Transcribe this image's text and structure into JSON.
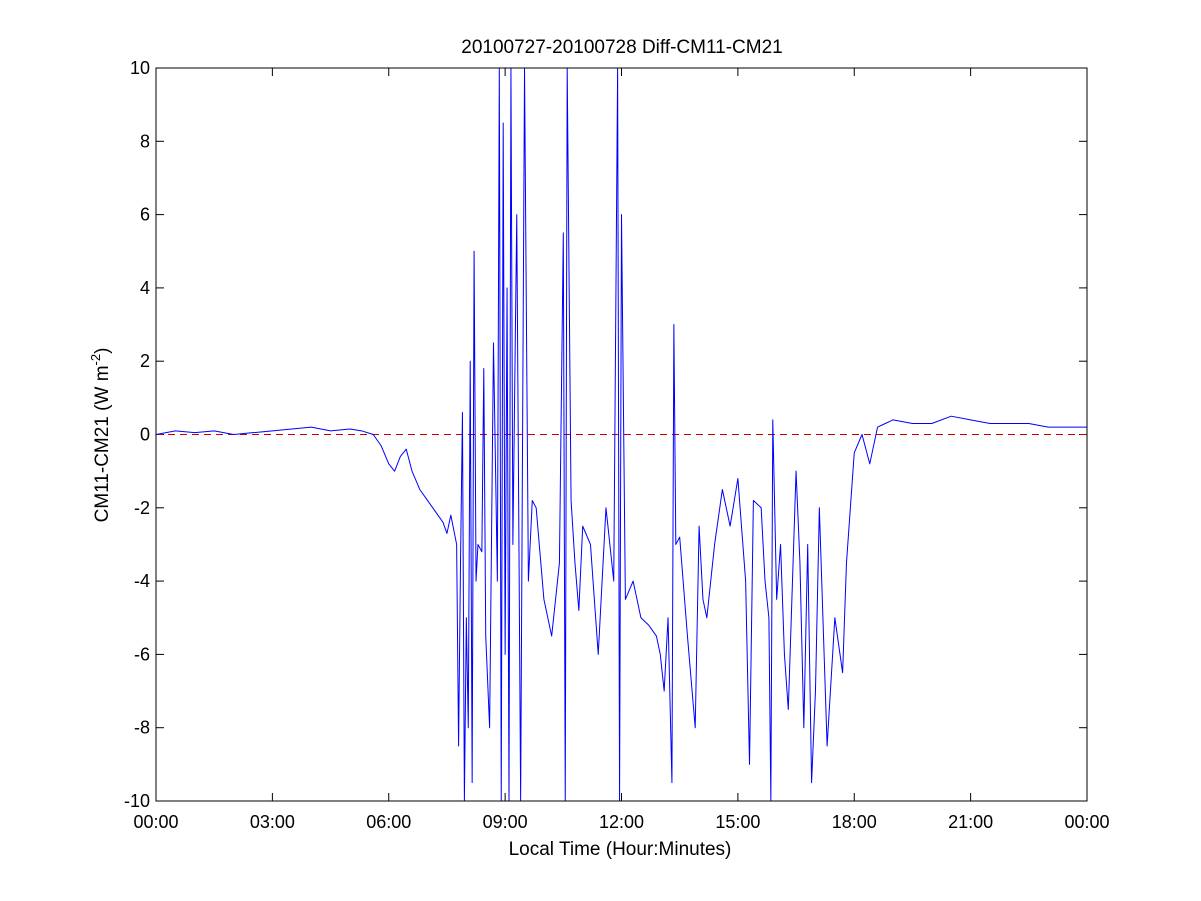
{
  "chart_data": {
    "type": "line",
    "title": "20100727-20100728 Diff-CM11-CM21",
    "xlabel": "Local Time (Hour:Minutes)",
    "ylabel": "CM11-CM21 (W m-2)",
    "ylabel_parts": {
      "main": "CM11-CM21 (W m",
      "sup": "-2",
      "close": ")"
    },
    "xlim": [
      0,
      24
    ],
    "ylim": [
      -10,
      10
    ],
    "x_unit": "hours (local time)",
    "x_ticks": [
      0,
      3,
      6,
      9,
      12,
      15,
      18,
      21,
      24
    ],
    "x_tick_labels": [
      "00:00",
      "03:00",
      "06:00",
      "09:00",
      "12:00",
      "15:00",
      "18:00",
      "21:00",
      "00:00"
    ],
    "y_ticks": [
      -10,
      -8,
      -6,
      -4,
      -2,
      0,
      2,
      4,
      6,
      8,
      10
    ],
    "y_tick_labels": [
      "-10",
      "-8",
      "-6",
      "-4",
      "-2",
      "0",
      "2",
      "4",
      "6",
      "8",
      "10"
    ],
    "grid": false,
    "reference_line": {
      "y": 0,
      "color": "#cc0000",
      "style": "dashed"
    },
    "series": [
      {
        "color": "#0000ff",
        "x": [
          0.0,
          0.5,
          1.0,
          1.5,
          2.0,
          2.5,
          3.0,
          3.5,
          4.0,
          4.5,
          5.0,
          5.3,
          5.6,
          5.8,
          6.0,
          6.15,
          6.3,
          6.45,
          6.6,
          6.8,
          7.0,
          7.2,
          7.4,
          7.5,
          7.6,
          7.75,
          7.8,
          7.85,
          7.9,
          7.95,
          8.0,
          8.05,
          8.1,
          8.15,
          8.2,
          8.25,
          8.3,
          8.4,
          8.45,
          8.5,
          8.6,
          8.7,
          8.8,
          8.85,
          8.9,
          8.95,
          9.0,
          9.05,
          9.1,
          9.15,
          9.2,
          9.3,
          9.4,
          9.5,
          9.6,
          9.7,
          9.8,
          10.0,
          10.2,
          10.4,
          10.5,
          10.55,
          10.6,
          10.7,
          10.8,
          10.9,
          11.0,
          11.2,
          11.4,
          11.6,
          11.8,
          11.9,
          11.95,
          12.0,
          12.1,
          12.3,
          12.5,
          12.7,
          12.9,
          13.0,
          13.1,
          13.2,
          13.3,
          13.35,
          13.4,
          13.5,
          13.7,
          13.9,
          14.0,
          14.1,
          14.2,
          14.4,
          14.6,
          14.8,
          15.0,
          15.2,
          15.3,
          15.4,
          15.6,
          15.7,
          15.8,
          15.85,
          15.9,
          16.0,
          16.1,
          16.2,
          16.3,
          16.5,
          16.6,
          16.7,
          16.8,
          16.9,
          17.0,
          17.1,
          17.3,
          17.5,
          17.7,
          17.8,
          17.9,
          18.0,
          18.2,
          18.4,
          18.6,
          18.8,
          19.0,
          19.5,
          20.0,
          20.5,
          21.0,
          21.5,
          22.0,
          22.5,
          23.0,
          23.5,
          24.0
        ],
        "y": [
          0.0,
          0.1,
          0.05,
          0.1,
          0.0,
          0.05,
          0.1,
          0.15,
          0.2,
          0.1,
          0.15,
          0.1,
          0.0,
          -0.3,
          -0.8,
          -1.0,
          -0.6,
          -0.4,
          -1.0,
          -1.5,
          -1.8,
          -2.1,
          -2.4,
          -2.7,
          -2.2,
          -3.0,
          -8.5,
          -3.5,
          0.6,
          -10.0,
          -5.0,
          -8.0,
          2.0,
          -9.5,
          5.0,
          -4.0,
          -3.0,
          -3.2,
          1.8,
          -5.5,
          -8.0,
          2.5,
          -4.0,
          10.0,
          -10.0,
          8.5,
          -6.0,
          4.0,
          -10.0,
          10.0,
          -3.0,
          6.0,
          -10.0,
          10.0,
          -4.0,
          -1.8,
          -2.0,
          -4.5,
          -5.5,
          -3.5,
          5.5,
          -10.0,
          10.0,
          -1.8,
          -3.5,
          -4.8,
          -2.5,
          -3.0,
          -6.0,
          -2.0,
          -4.0,
          10.0,
          -10.0,
          6.0,
          -4.5,
          -4.0,
          -5.0,
          -5.2,
          -5.5,
          -6.0,
          -7.0,
          -5.0,
          -9.5,
          3.0,
          -3.0,
          -2.8,
          -5.5,
          -8.0,
          -2.5,
          -4.5,
          -5.0,
          -3.0,
          -1.5,
          -2.5,
          -1.2,
          -4.0,
          -9.0,
          -1.8,
          -2.0,
          -4.0,
          -5.0,
          -10.0,
          0.4,
          -4.5,
          -3.0,
          -6.0,
          -7.5,
          -1.0,
          -3.5,
          -8.0,
          -3.0,
          -9.5,
          -7.0,
          -2.0,
          -8.5,
          -5.0,
          -6.5,
          -3.5,
          -2.0,
          -0.5,
          0.0,
          -0.8,
          0.2,
          0.3,
          0.4,
          0.3,
          0.3,
          0.5,
          0.4,
          0.3,
          0.3,
          0.3,
          0.2,
          0.2,
          0.2
        ]
      }
    ]
  }
}
